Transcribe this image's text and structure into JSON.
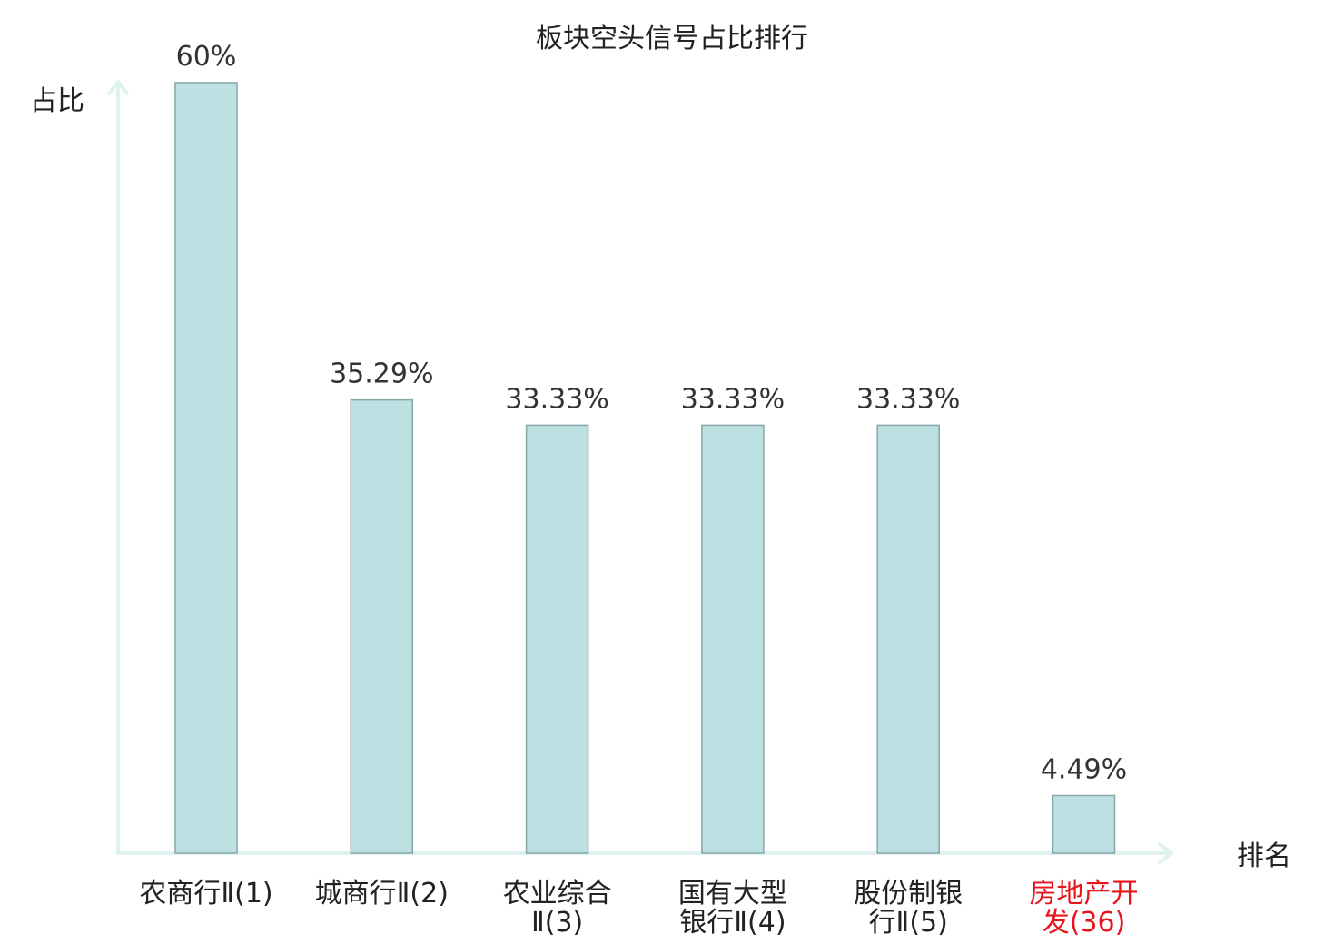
{
  "chart_data": {
    "type": "bar",
    "title": "板块空头信号占比排行",
    "ylabel": "占比",
    "xlabel": "排名",
    "ylim": [
      0,
      60
    ],
    "grid": false,
    "categories": [
      [
        "农商行Ⅱ(1)"
      ],
      [
        "城商行Ⅱ(2)"
      ],
      [
        "农业综合",
        "Ⅱ(3)"
      ],
      [
        "国有大型",
        "银行Ⅱ(4)"
      ],
      [
        "股份制银",
        "行Ⅱ(5)"
      ],
      [
        "房地产开",
        "发(36)"
      ]
    ],
    "values": [
      60,
      35.29,
      33.33,
      33.33,
      33.33,
      4.49
    ],
    "value_labels": [
      "60%",
      "35.29%",
      "33.33%",
      "33.33%",
      "33.33%",
      "4.49%"
    ],
    "colors": {
      "bar_fill": "#bde0e2",
      "bar_stroke": "#86a6aa",
      "axis": "#e0f2ef",
      "category_text": "#222222",
      "highlight_text": "#e8141c"
    },
    "highlight_index": 5
  }
}
